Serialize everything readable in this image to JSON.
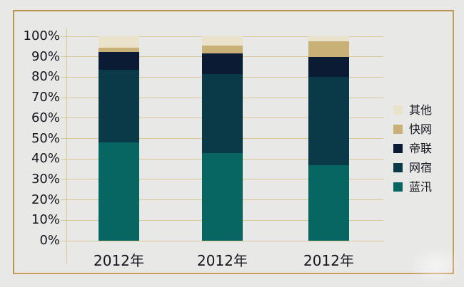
{
  "chart_data": {
    "type": "bar",
    "variant": "stacked-percent-column",
    "title": "",
    "categories": [
      "2012年",
      "2012年",
      "2012年"
    ],
    "series": [
      {
        "name": "蓝汛",
        "color": "#086662",
        "values": [
          48,
          43,
          37
        ]
      },
      {
        "name": "网宿",
        "color": "#0a3a48",
        "values": [
          35.5,
          38.5,
          43
        ]
      },
      {
        "name": "帝联",
        "color": "#0b1b33",
        "values": [
          9,
          10,
          10
        ]
      },
      {
        "name": "快网",
        "color": "#c8b077",
        "values": [
          2,
          4,
          7.5
        ]
      },
      {
        "name": "其他",
        "color": "#ebe2cb",
        "values": [
          5.5,
          4.5,
          2.5
        ]
      }
    ],
    "legend_top_to_bottom": [
      "其他",
      "快网",
      "帝联",
      "网宿",
      "蓝汛"
    ],
    "y_tick_labels": [
      "100%",
      "90%",
      "80%",
      "70%",
      "60%",
      "50%",
      "40%",
      "30%",
      "20%",
      "10%",
      "0%"
    ],
    "ylim": [
      0,
      100
    ],
    "grid": true,
    "legend_position": "right"
  },
  "colors": {
    "background": "#e8e8e6",
    "frame_border": "#c49f5e",
    "gridline": "#d9c795",
    "axis": "#d9c795",
    "label_text": "#15151e"
  }
}
